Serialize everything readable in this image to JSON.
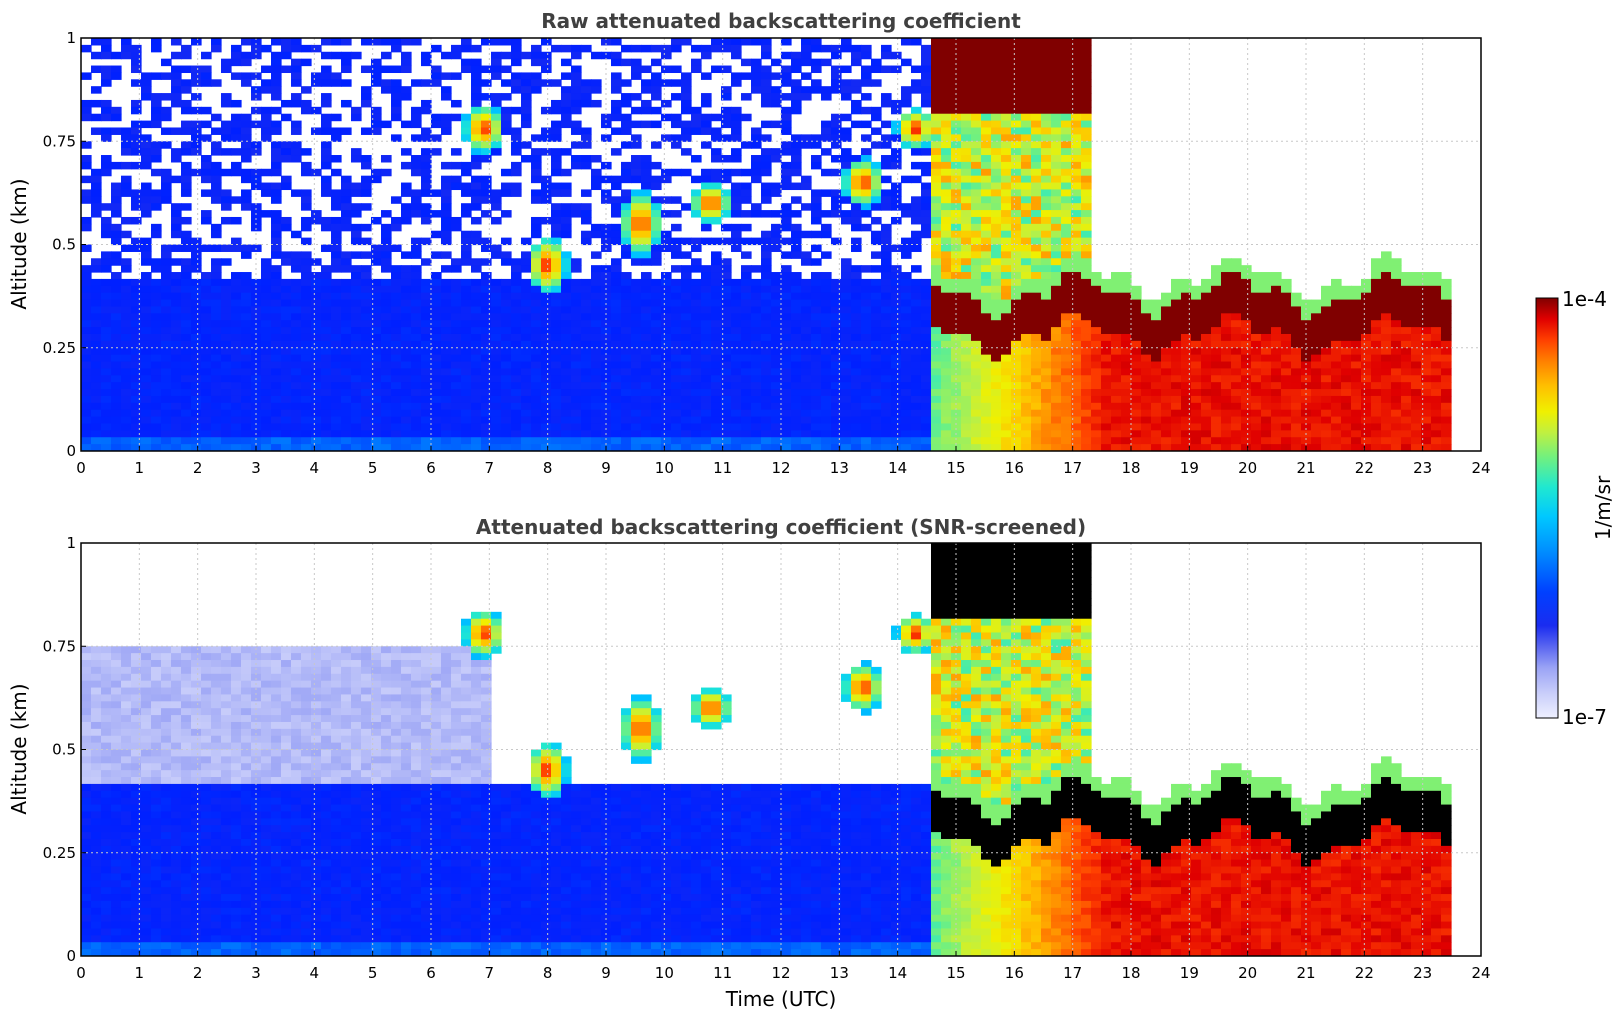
{
  "chart_data": [
    {
      "type": "heatmap",
      "title": "Raw attenuated backscattering coefficient",
      "xlabel": "",
      "ylabel": "Altitude (km)",
      "xlim": [
        0,
        24
      ],
      "ylim": [
        0,
        1
      ],
      "xticks": [
        "0",
        "1",
        "2",
        "3",
        "4",
        "5",
        "6",
        "7",
        "8",
        "9",
        "10",
        "11",
        "12",
        "13",
        "14",
        "15",
        "16",
        "17",
        "18",
        "19",
        "20",
        "21",
        "22",
        "23",
        "24"
      ],
      "yticks": [
        "0",
        "0.25",
        "0.5",
        "0.75",
        "1"
      ],
      "grid": true,
      "data_end_hour": 23.55,
      "layers": [
        {
          "name": "noise",
          "x_range": [
            0,
            14.6
          ],
          "y_range": [
            0.45,
            1.0
          ]
        },
        {
          "name": "boundary layer",
          "x_range": [
            0,
            23.55
          ],
          "y_range": [
            0,
            0.4
          ]
        },
        {
          "name": "low cloud base",
          "x_range": [
            14.6,
            23.55
          ],
          "y_range": [
            0.22,
            0.4
          ]
        },
        {
          "name": "upper cloud",
          "x_range": [
            15.0,
            17.4
          ],
          "y_range": [
            0.8,
            1.0
          ]
        }
      ]
    },
    {
      "type": "heatmap",
      "title": "Attenuated backscattering coefficient (SNR-screened)",
      "xlabel": "Time (UTC)",
      "ylabel": "Altitude (km)",
      "xlim": [
        0,
        24
      ],
      "ylim": [
        0,
        1
      ],
      "xticks": [
        "0",
        "1",
        "2",
        "3",
        "4",
        "5",
        "6",
        "7",
        "8",
        "9",
        "10",
        "11",
        "12",
        "13",
        "14",
        "15",
        "16",
        "17",
        "18",
        "19",
        "20",
        "21",
        "22",
        "23",
        "24"
      ],
      "yticks": [
        "0",
        "0.25",
        "0.5",
        "0.75",
        "1"
      ],
      "grid": true,
      "data_end_hour": 23.55
    }
  ],
  "colorbar": {
    "label": "1/m/sr",
    "max_label": "1e-4",
    "min_label": "1e-7",
    "colors": [
      "#eef0ff",
      "#c8cdfa",
      "#9aa3f5",
      "#5a66f0",
      "#1a2cf0",
      "#0020ff",
      "#0050ff",
      "#0090ff",
      "#00c8ff",
      "#20e8d0",
      "#70f080",
      "#c0f040",
      "#f0f000",
      "#ffc000",
      "#ff8000",
      "#ff4000",
      "#e00000",
      "#800000"
    ]
  }
}
